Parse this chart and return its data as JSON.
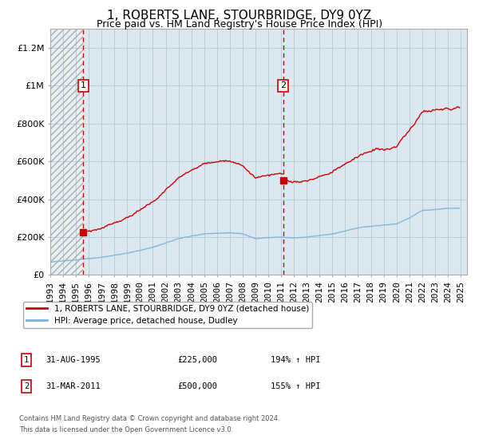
{
  "title": "1, ROBERTS LANE, STOURBRIDGE, DY9 0YZ",
  "subtitle": "Price paid vs. HM Land Registry's House Price Index (HPI)",
  "title_fontsize": 11,
  "subtitle_fontsize": 9,
  "red_label": "1, ROBERTS LANE, STOURBRIDGE, DY9 0YZ (detached house)",
  "blue_label": "HPI: Average price, detached house, Dudley",
  "transaction1_date": "31-AUG-1995",
  "transaction1_price": 225000,
  "transaction1_text": "194% ↑ HPI",
  "transaction2_date": "31-MAR-2011",
  "transaction2_price": 500000,
  "transaction2_text": "155% ↑ HPI",
  "ylabel_ticks": [
    "£0",
    "£200K",
    "£400K",
    "£600K",
    "£800K",
    "£1M",
    "£1.2M"
  ],
  "ytick_values": [
    0,
    200000,
    400000,
    600000,
    800000,
    1000000,
    1200000
  ],
  "ylim": [
    0,
    1300000
  ],
  "xlim_start": 1993.0,
  "xlim_end": 2025.5,
  "red_color": "#cc0000",
  "blue_color": "#7eb0d4",
  "dashed_color": "#cc0000",
  "bg_color": "#ffffff",
  "plot_bg_color": "#dce8f0",
  "grid_color": "#b8cfe0",
  "footnote1": "Contains HM Land Registry data © Crown copyright and database right 2024.",
  "footnote2": "This data is licensed under the Open Government Licence v3.0."
}
